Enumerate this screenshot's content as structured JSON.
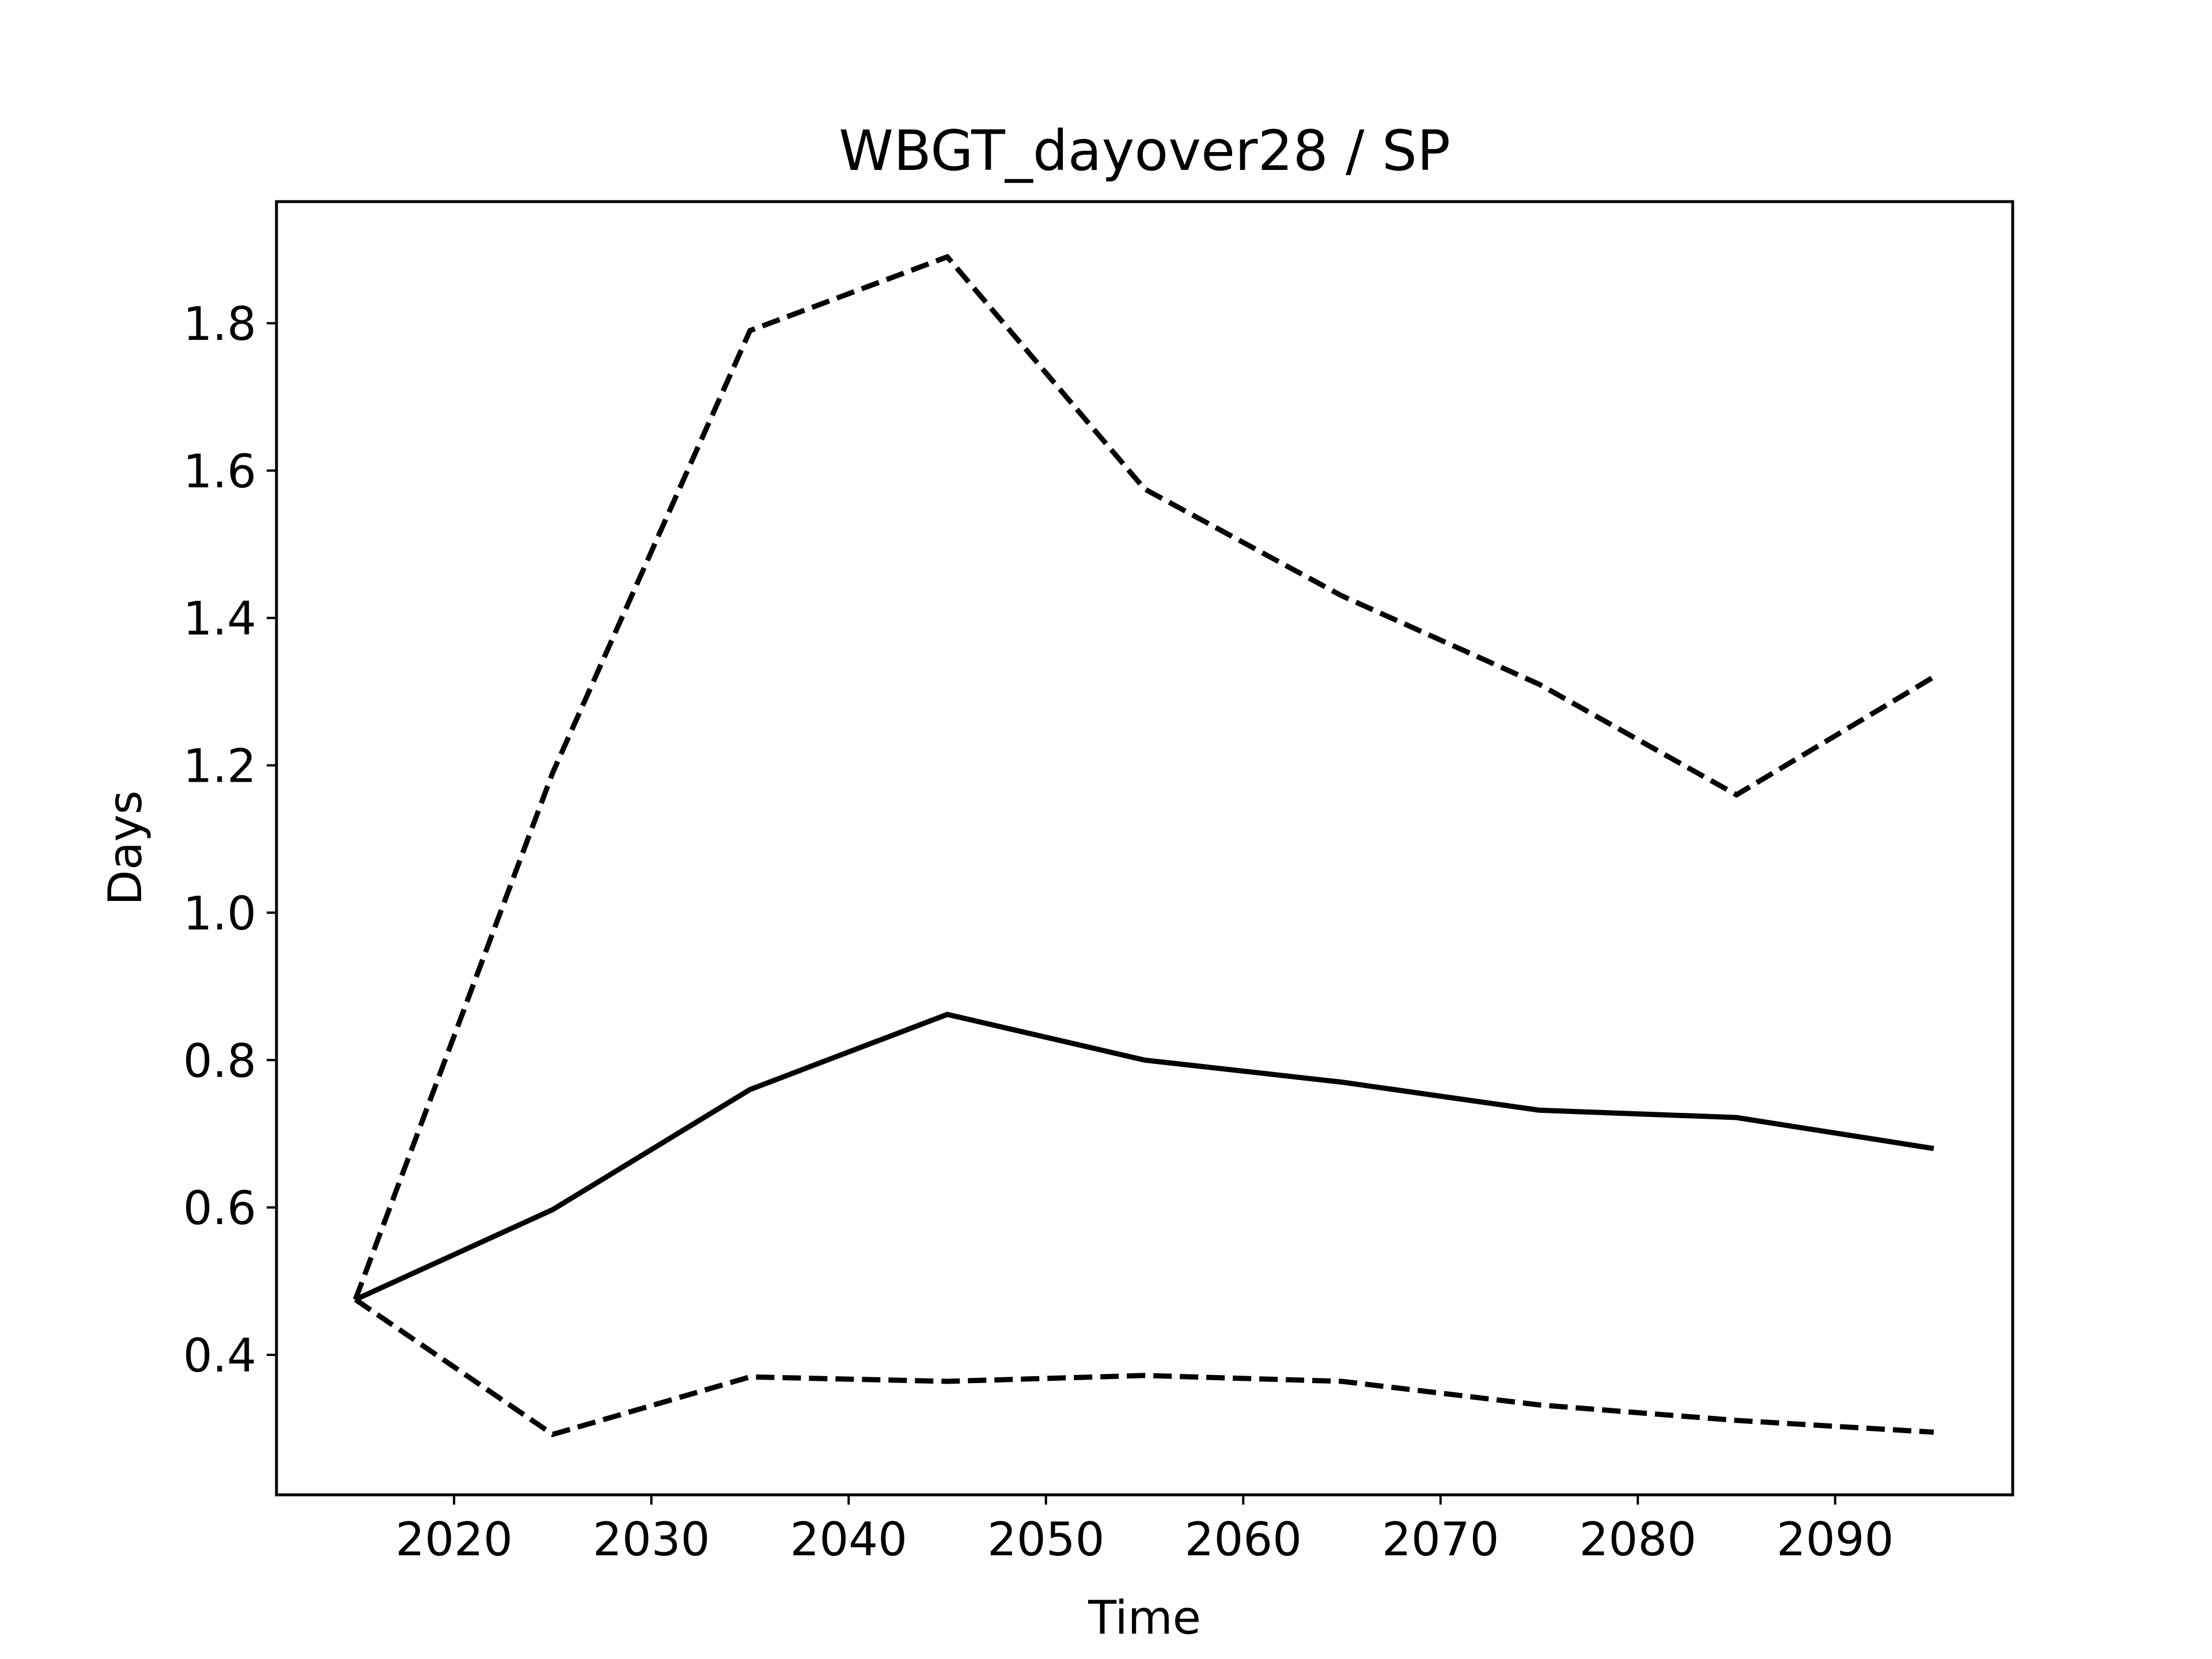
{
  "chart_data": {
    "type": "line",
    "title": "WBGT_dayover28 / SP",
    "xlabel": "Time",
    "ylabel": "Days",
    "x": [
      2015,
      2025,
      2035,
      2045,
      2055,
      2065,
      2075,
      2085,
      2095
    ],
    "xlim": [
      2011,
      2099
    ],
    "ylim": [
      0.21,
      1.965
    ],
    "xticks": [
      2020,
      2030,
      2040,
      2050,
      2060,
      2070,
      2080,
      2090
    ],
    "yticks": [
      0.4,
      0.6,
      0.8,
      1.0,
      1.2,
      1.4,
      1.6,
      1.8
    ],
    "grid": false,
    "series": [
      {
        "style": "solid",
        "color": "#000000",
        "values": [
          0.475,
          0.597,
          0.76,
          0.862,
          0.8,
          0.77,
          0.732,
          0.722,
          0.68
        ]
      },
      {
        "style": "dashed",
        "color": "#000000",
        "values": [
          0.475,
          1.19,
          1.79,
          1.89,
          1.575,
          1.43,
          1.31,
          1.16,
          1.32
        ]
      },
      {
        "style": "dashed",
        "color": "#000000",
        "values": [
          0.475,
          0.292,
          0.37,
          0.364,
          0.372,
          0.364,
          0.332,
          0.311,
          0.295
        ]
      }
    ]
  }
}
